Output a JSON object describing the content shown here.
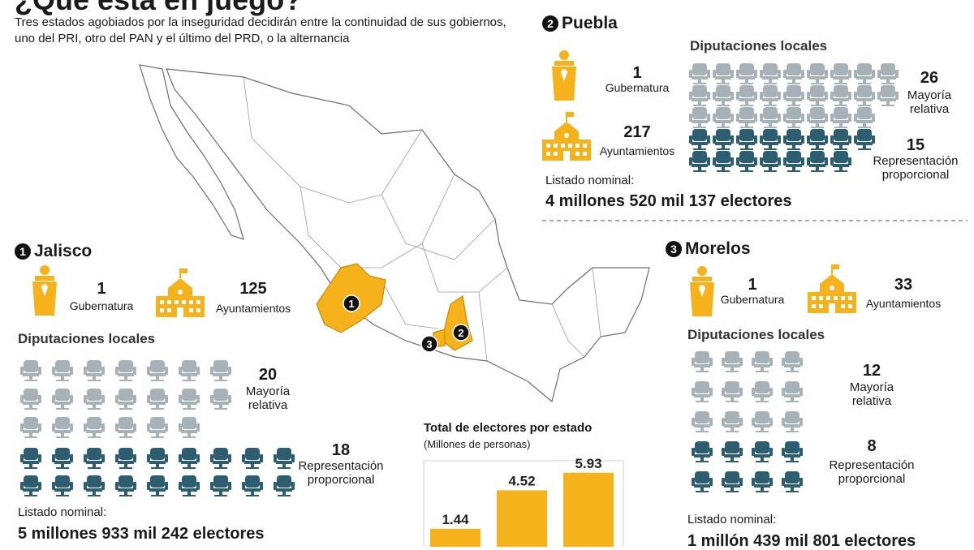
{
  "header": {
    "title": "¿Qué está en juego?",
    "subtitle": "Tres estados agobiados por la inseguridad decidirán entre la continuidad de sus gobiernos, uno del PRI, otro del PAN y el último del PRD, o la alternancia"
  },
  "states": [
    {
      "number": "1",
      "name": "Jalisco",
      "gubernatura": {
        "value": 1,
        "label": "Gubernatura"
      },
      "ayuntamientos": {
        "value": 125,
        "label": "Ayuntamientos"
      },
      "diputaciones": {
        "title": "Diputaciones locales",
        "mayoria": {
          "value": 20,
          "label": "Mayoría relativa"
        },
        "representacion": {
          "value": 18,
          "label": "Representación proporcional"
        }
      },
      "listado": {
        "label": "Listado nominal:",
        "value": "5 millones 933 mil 242 electores"
      }
    },
    {
      "number": "2",
      "name": "Puebla",
      "gubernatura": {
        "value": 1,
        "label": "Gubernatura"
      },
      "ayuntamientos": {
        "value": 217,
        "label": "Ayuntamientos"
      },
      "diputaciones": {
        "title": "Diputaciones locales",
        "mayoria": {
          "value": 26,
          "label": "Mayoría relativa"
        },
        "representacion": {
          "value": 15,
          "label": "Representación proporcional"
        }
      },
      "listado": {
        "label": "Listado nominal:",
        "value": "4 millones 520 mil 137 electores"
      }
    },
    {
      "number": "3",
      "name": "Morelos",
      "gubernatura": {
        "value": 1,
        "label": "Gubernatura"
      },
      "ayuntamientos": {
        "value": 33,
        "label": "Ayuntamientos"
      },
      "diputaciones": {
        "title": "Diputaciones locales",
        "mayoria": {
          "value": 12,
          "label": "Mayoría relativa"
        },
        "representacion": {
          "value": 8,
          "label": "Representación proporcional"
        }
      },
      "listado": {
        "label": "Listado nominal:",
        "value": "1 millón 439 mil 801 electores"
      }
    }
  ],
  "chart_data": {
    "type": "bar",
    "title": "Total de electores por estado",
    "subtitle": "(Millones de personas)",
    "categories": [
      null,
      null,
      null
    ],
    "values": [
      1.44,
      4.52,
      5.93
    ],
    "color": "#f5b21a",
    "ylim": [
      0,
      6.5
    ]
  }
}
